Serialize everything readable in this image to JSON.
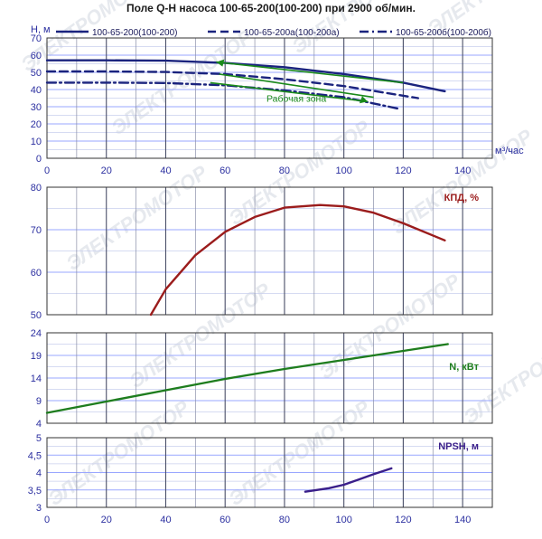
{
  "title": "Поле Q-H насоса 100-65-200(100-200) при 2900 об/мин.",
  "watermark": "ЭЛЕКТРОМОТОР",
  "x_axis": {
    "unit": "м³/час",
    "ticks": [
      0,
      20,
      40,
      60,
      80,
      100,
      120,
      140
    ],
    "range": [
      0,
      150
    ]
  },
  "chart_data": [
    {
      "type": "line",
      "id": "qh",
      "ylabel": "H, м",
      "ylim": [
        0,
        70
      ],
      "yticks": [
        0,
        10,
        20,
        30,
        40,
        50,
        60,
        70
      ],
      "grid": true,
      "legend_position": "top",
      "series": [
        {
          "name": "100-65-200(100-200)",
          "color": "#1a237e",
          "dash": "solid",
          "x": [
            0,
            20,
            40,
            60,
            80,
            100,
            120,
            134
          ],
          "y": [
            57,
            57,
            56.8,
            55.5,
            53,
            49,
            44,
            39
          ]
        },
        {
          "name": "100-65-200а(100-200а)",
          "color": "#1a237e",
          "dash": "dash",
          "x": [
            0,
            20,
            40,
            60,
            80,
            100,
            125
          ],
          "y": [
            50.5,
            50.5,
            50.2,
            49,
            46,
            42,
            35
          ]
        },
        {
          "name": "100-65-200б(100-200б)",
          "color": "#1a237e",
          "dash": "dashdot",
          "x": [
            0,
            20,
            40,
            60,
            80,
            100,
            118
          ],
          "y": [
            44,
            44,
            43.8,
            42.5,
            39.5,
            35.5,
            29
          ]
        }
      ],
      "annotations": [
        {
          "text": "Рабочая зона",
          "x": 84,
          "y": 33,
          "color": "#1a8a1a"
        }
      ],
      "work_zone": {
        "color": "#1a8a1a",
        "lines": [
          {
            "x": [
              57,
              120
            ],
            "y": [
              56,
              44
            ]
          },
          {
            "x": [
              55,
              108
            ],
            "y": [
              44,
              33
            ]
          },
          {
            "x": [
              58,
              110
            ],
            "y": [
              49,
              35.5
            ]
          }
        ]
      }
    },
    {
      "type": "line",
      "id": "eff",
      "ylabel": "КПД, %",
      "ylim": [
        50,
        80
      ],
      "yticks": [
        50,
        60,
        70,
        80
      ],
      "grid": true,
      "series": [
        {
          "name": "КПД, %",
          "color": "#9b1c1c",
          "dash": "solid",
          "x": [
            35,
            40,
            50,
            60,
            70,
            80,
            92,
            100,
            110,
            120,
            134
          ],
          "y": [
            50,
            56,
            64,
            69.5,
            73,
            75.2,
            75.8,
            75.5,
            74,
            71.5,
            67.5
          ]
        }
      ]
    },
    {
      "type": "line",
      "id": "power",
      "ylabel": "N, кВт",
      "ylim": [
        4,
        24
      ],
      "yticks": [
        4,
        9,
        14,
        19,
        24
      ],
      "grid": true,
      "series": [
        {
          "name": "N, кВт",
          "color": "#1e7d1e",
          "dash": "solid",
          "x": [
            0,
            20,
            40,
            60,
            80,
            100,
            120,
            135
          ],
          "y": [
            6.3,
            8.8,
            11.3,
            13.8,
            16,
            18,
            20,
            21.5
          ]
        }
      ]
    },
    {
      "type": "line",
      "id": "npsh",
      "ylabel": "NPSH, м",
      "ylim": [
        3,
        5
      ],
      "yticks": [
        3,
        3.5,
        4,
        4.5,
        5
      ],
      "yticklabels": [
        "3",
        "3,5",
        "4",
        "4,5",
        "5"
      ],
      "grid": true,
      "series": [
        {
          "name": "NPSH, м",
          "color": "#3a1f8a",
          "dash": "solid",
          "x": [
            87,
            95,
            100,
            105,
            110,
            116
          ],
          "y": [
            3.45,
            3.55,
            3.65,
            3.8,
            3.95,
            4.12
          ]
        }
      ]
    }
  ]
}
